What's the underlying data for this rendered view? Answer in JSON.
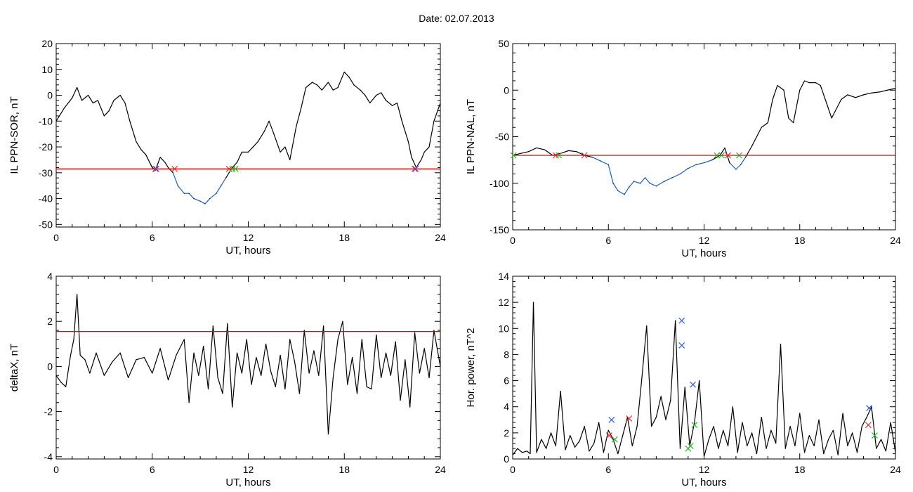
{
  "header": {
    "date_label": "Date:  02.07.2013"
  },
  "colors": {
    "trace": "#000000",
    "below": "#1f5fbf",
    "threshold": "#e00000",
    "marker_red": "#e03030",
    "marker_green": "#30b030",
    "marker_blue": "#3060e0"
  },
  "chart_data": [
    {
      "type": "line",
      "xlabel": "UT, hours",
      "ylabel": "IL PPN-SOR, nT",
      "xlim": [
        0,
        24
      ],
      "ylim": [
        -51,
        20
      ],
      "xticks": [
        0,
        6,
        12,
        18,
        24
      ],
      "yticks": [
        -50,
        -40,
        -30,
        -20,
        -10,
        0,
        10,
        20
      ],
      "threshold": -28.5,
      "series": [
        {
          "color": "black",
          "x": [
            0,
            0.5,
            1,
            1.3,
            1.6,
            2,
            2.3,
            2.6,
            3,
            3.3,
            3.6,
            4,
            4.3,
            4.6,
            5,
            5.3,
            5.6,
            6,
            6.2,
            6.5,
            6.8,
            7,
            7.3,
            7.6,
            8,
            8.3,
            8.6,
            9,
            9.3,
            9.6,
            10,
            10.3,
            10.6,
            11,
            11.3,
            11.6,
            12,
            12.3,
            12.6,
            13,
            13.3,
            13.6,
            14,
            14.3,
            14.6,
            15,
            15.3,
            15.6,
            16,
            16.3,
            16.6,
            17,
            17.3,
            17.6,
            18,
            18.3,
            18.6,
            19,
            19.3,
            19.6,
            20,
            20.3,
            20.6,
            21,
            21.3,
            21.6,
            22,
            22.2,
            22.5,
            22.8,
            23,
            23.3,
            23.6,
            24
          ],
          "y": [
            -10,
            -5,
            -1,
            3,
            -2,
            0,
            -3,
            -2,
            -8,
            -6,
            -2,
            0,
            -3,
            -10,
            -18,
            -21,
            -23,
            -28,
            -29,
            -24,
            -26,
            -28,
            -30,
            -35,
            -38,
            -38,
            -40,
            -41,
            -42,
            -40,
            -38,
            -35,
            -32,
            -28,
            -26,
            -22,
            -22,
            -20,
            -18,
            -14,
            -10,
            -15,
            -22,
            -20,
            -25,
            -12,
            -5,
            3,
            5,
            4,
            2,
            5,
            2,
            3,
            9,
            7,
            4,
            2,
            0,
            -3,
            0,
            1,
            -2,
            -4,
            -3,
            -10,
            -18,
            -24,
            -28,
            -25,
            -22,
            -20,
            -10,
            -3
          ]
        }
      ],
      "markers": [
        {
          "x": 6.2,
          "y": -28.5,
          "c": "red"
        },
        {
          "x": 6.25,
          "y": -28.5,
          "c": "blue"
        },
        {
          "x": 7.4,
          "y": -28.5,
          "c": "red"
        },
        {
          "x": 10.8,
          "y": -28.5,
          "c": "red"
        },
        {
          "x": 11.0,
          "y": -28.5,
          "c": "green"
        },
        {
          "x": 11.2,
          "y": -28.5,
          "c": "green"
        },
        {
          "x": 22.4,
          "y": -28.5,
          "c": "red"
        },
        {
          "x": 22.45,
          "y": -28.5,
          "c": "blue"
        }
      ]
    },
    {
      "type": "line",
      "xlabel": "UT, hours",
      "ylabel": "IL PPN-NAL, nT",
      "xlim": [
        0,
        24
      ],
      "ylim": [
        -150,
        50
      ],
      "xticks": [
        0,
        6,
        12,
        18,
        24
      ],
      "yticks": [
        -150,
        -100,
        -50,
        0,
        50
      ],
      "threshold": -70,
      "series": [
        {
          "color": "black",
          "x": [
            0,
            0.5,
            1,
            1.5,
            2,
            2.5,
            3,
            3.5,
            4,
            4.5,
            5,
            5.5,
            6,
            6.3,
            6.6,
            7,
            7.3,
            7.6,
            8,
            8.3,
            8.6,
            9,
            9.5,
            10,
            10.5,
            11,
            11.5,
            12,
            12.5,
            13,
            13.3,
            13.6,
            14,
            14.3,
            14.6,
            15,
            15.3,
            15.6,
            16,
            16.3,
            16.6,
            17,
            17.3,
            17.6,
            18,
            18.3,
            18.6,
            19,
            19.3,
            19.6,
            20,
            20.3,
            20.6,
            21,
            21.5,
            22,
            22.5,
            23,
            23.5,
            24
          ],
          "y": [
            -70,
            -68,
            -66,
            -62,
            -64,
            -70,
            -68,
            -65,
            -66,
            -70,
            -72,
            -76,
            -80,
            -100,
            -108,
            -112,
            -104,
            -98,
            -100,
            -94,
            -100,
            -103,
            -98,
            -94,
            -90,
            -84,
            -80,
            -78,
            -75,
            -70,
            -62,
            -78,
            -85,
            -80,
            -72,
            -60,
            -50,
            -40,
            -35,
            -10,
            5,
            0,
            -30,
            -35,
            0,
            10,
            8,
            8,
            5,
            -10,
            -30,
            -20,
            -10,
            -5,
            -8,
            -5,
            -3,
            -2,
            0,
            2
          ]
        }
      ],
      "markers": [
        {
          "x": 0.05,
          "y": -70,
          "c": "green"
        },
        {
          "x": 2.7,
          "y": -70,
          "c": "red"
        },
        {
          "x": 2.9,
          "y": -70,
          "c": "green"
        },
        {
          "x": 4.5,
          "y": -70,
          "c": "red"
        },
        {
          "x": 12.8,
          "y": -70,
          "c": "green"
        },
        {
          "x": 13.1,
          "y": -70,
          "c": "green"
        },
        {
          "x": 13.5,
          "y": -70,
          "c": "red"
        },
        {
          "x": 14.2,
          "y": -70,
          "c": "green"
        }
      ]
    },
    {
      "type": "line",
      "xlabel": "UT, hours",
      "ylabel": "deltaX, nT",
      "xlim": [
        0,
        24
      ],
      "ylim": [
        -4.1,
        4
      ],
      "xticks": [
        0,
        6,
        12,
        18,
        24
      ],
      "yticks": [
        -4,
        -2,
        0,
        2,
        4
      ],
      "threshold": 1.55,
      "series": [
        {
          "color": "black",
          "x": [
            0,
            0.3,
            0.6,
            0.9,
            1.1,
            1.3,
            1.5,
            1.8,
            2.1,
            2.5,
            3,
            3.5,
            4,
            4.5,
            5,
            5.5,
            6,
            6.5,
            7,
            7.5,
            8,
            8.3,
            8.6,
            8.9,
            9.2,
            9.5,
            9.8,
            10.1,
            10.4,
            10.7,
            11,
            11.3,
            11.6,
            11.9,
            12.2,
            12.5,
            12.8,
            13.1,
            13.4,
            13.7,
            14,
            14.3,
            14.6,
            14.9,
            15.2,
            15.5,
            15.8,
            16.1,
            16.4,
            16.7,
            17,
            17.3,
            17.6,
            17.9,
            18.2,
            18.5,
            18.8,
            19.1,
            19.4,
            19.7,
            20,
            20.3,
            20.6,
            20.9,
            21.2,
            21.5,
            21.8,
            22.1,
            22.4,
            22.7,
            23,
            23.3,
            23.6,
            24
          ],
          "y": [
            -0.4,
            -0.7,
            -0.9,
            0.5,
            1.2,
            3.2,
            0.5,
            0.3,
            -0.3,
            0.6,
            -0.4,
            0.2,
            0.6,
            -0.5,
            0.3,
            0.4,
            -0.3,
            0.8,
            -0.6,
            0.5,
            1.2,
            -1.6,
            0.6,
            -0.4,
            0.9,
            -1.0,
            1.8,
            -0.5,
            -1.2,
            1.9,
            -1.8,
            0.6,
            -0.3,
            1.2,
            -0.8,
            0.4,
            -0.4,
            1.0,
            -0.2,
            -0.9,
            0.5,
            -1.0,
            1.2,
            0.2,
            -1.2,
            1.6,
            -0.3,
            0.7,
            -0.4,
            1.8,
            -3.0,
            -0.5,
            1.2,
            2.0,
            -0.8,
            0.4,
            -1.2,
            1.2,
            -0.9,
            -1.0,
            1.4,
            -0.5,
            0.6,
            -0.4,
            1.1,
            -1.5,
            0.3,
            -1.8,
            1.5,
            -0.3,
            0.8,
            -0.5,
            1.6,
            0
          ]
        }
      ],
      "markers": []
    },
    {
      "type": "line",
      "xlabel": "UT, hours",
      "ylabel": "Hor. power, nT^2",
      "xlim": [
        0,
        24
      ],
      "ylim": [
        0,
        14
      ],
      "xticks": [
        0,
        6,
        12,
        18,
        24
      ],
      "yticks": [
        0,
        2,
        4,
        6,
        8,
        10,
        12,
        14
      ],
      "series": [
        {
          "color": "black",
          "x": [
            0,
            0.3,
            0.6,
            0.9,
            1.1,
            1.3,
            1.5,
            1.8,
            2.1,
            2.4,
            2.7,
            3,
            3.3,
            3.6,
            3.9,
            4.2,
            4.5,
            4.8,
            5.1,
            5.4,
            5.7,
            6,
            6.3,
            6.6,
            6.9,
            7.2,
            7.5,
            7.8,
            8.1,
            8.4,
            8.7,
            9,
            9.3,
            9.6,
            9.9,
            10.2,
            10.5,
            10.8,
            11.1,
            11.4,
            11.7,
            12,
            12.3,
            12.6,
            12.9,
            13.2,
            13.5,
            13.8,
            14.1,
            14.4,
            14.7,
            15,
            15.3,
            15.6,
            15.9,
            16.2,
            16.5,
            16.8,
            17.1,
            17.4,
            17.7,
            18,
            18.3,
            18.6,
            18.9,
            19.2,
            19.5,
            19.8,
            20.1,
            20.4,
            20.7,
            21,
            21.3,
            21.6,
            21.9,
            22.2,
            22.5,
            22.8,
            23.1,
            23.4,
            23.7,
            24
          ],
          "y": [
            0.3,
            0.8,
            0.5,
            0.6,
            0.4,
            12,
            0.5,
            1.5,
            0.8,
            2.0,
            1.0,
            5.2,
            0.7,
            1.8,
            0.9,
            1.4,
            2.5,
            0.6,
            1.2,
            2.8,
            0.5,
            2.2,
            1.5,
            0.4,
            1.8,
            3.2,
            1.0,
            2.5,
            6.2,
            10.2,
            2.5,
            3.2,
            4.8,
            3.0,
            4.5,
            10.6,
            0.8,
            5.5,
            1.0,
            2.8,
            6.0,
            0.2,
            1.5,
            2.5,
            0.8,
            2.2,
            1.0,
            4.0,
            0.5,
            2.8,
            1.0,
            2.0,
            0.4,
            3.2,
            0.8,
            2.2,
            1.2,
            8.8,
            0.8,
            2.5,
            1.0,
            3.5,
            0.5,
            1.8,
            1.0,
            3.0,
            0.4,
            1.5,
            2.2,
            0.3,
            3.5,
            1.0,
            2.0,
            0.5,
            2.5,
            3.2,
            4.0,
            0.8,
            1.5,
            0.6,
            2.8,
            0.5
          ]
        }
      ],
      "markers": [
        {
          "x": 6.05,
          "y": 1.8,
          "c": "red"
        },
        {
          "x": 6.2,
          "y": 3.0,
          "c": "blue"
        },
        {
          "x": 6.4,
          "y": 1.5,
          "c": "green"
        },
        {
          "x": 7.3,
          "y": 3.1,
          "c": "red"
        },
        {
          "x": 10.6,
          "y": 10.6,
          "c": "blue"
        },
        {
          "x": 10.6,
          "y": 8.7,
          "c": "blue"
        },
        {
          "x": 11.0,
          "y": 0.8,
          "c": "green"
        },
        {
          "x": 11.15,
          "y": 1.0,
          "c": "green"
        },
        {
          "x": 11.3,
          "y": 5.7,
          "c": "blue"
        },
        {
          "x": 11.4,
          "y": 2.6,
          "c": "green"
        },
        {
          "x": 22.3,
          "y": 2.6,
          "c": "red"
        },
        {
          "x": 22.35,
          "y": 3.9,
          "c": "blue"
        },
        {
          "x": 22.7,
          "y": 1.8,
          "c": "green"
        }
      ]
    }
  ]
}
